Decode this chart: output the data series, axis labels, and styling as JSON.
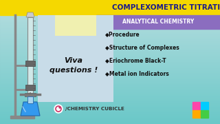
{
  "bg_color": "#7ecfcf",
  "bg_color_top": "#a8dde0",
  "title_text": "COMPLEXOMETRIC TITRATION",
  "title_bg": "#f5d800",
  "title_color": "#1a1a8c",
  "analytical_text": "ANALYTICAL CHEMISTRY",
  "analytical_bg": "#8b6dbf",
  "analytical_color": "white",
  "sticky_outer_color": "#c8dce8",
  "sticky_inner_color": "#f0f0b0",
  "viva_text": "Viva\nquestions !",
  "viva_color": "#111111",
  "bullet_items": [
    "◆Procedure",
    "◆Structure of Complexes",
    "◆Eriochrome Black-T",
    "◆Metal ion Indicators"
  ],
  "bullet_color": "#111111",
  "instagram_text": "/CHEMISTRY CUBICLE",
  "instagram_color": "#333333",
  "flask_color": "#3399ee",
  "flask_edge": "#2266aa",
  "stand_color": "#888888",
  "burette_fill": "#d0e8e8",
  "burette_edge": "#888888",
  "cube_colors": [
    "#ff44aa",
    "#00ccff",
    "#ffaa00",
    "#44cc44"
  ]
}
